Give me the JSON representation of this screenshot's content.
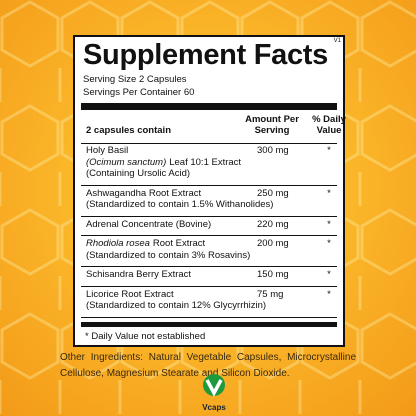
{
  "label": {
    "version": "V1",
    "title": "Supplement Facts",
    "serving_size": "Serving Size 2 Capsules",
    "servings_per_container": "Servings Per Container 60",
    "header": {
      "ingredient": "2 capsules contain",
      "amount": "Amount Per Serving",
      "daily_value": "% Daily Value"
    },
    "rows": [
      {
        "lines": [
          [
            {
              "text": "Holy Basil"
            }
          ],
          [
            {
              "text": "(Ocimum sanctum)",
              "italic": true
            },
            {
              "text": "Leaf 10:1 Extract"
            }
          ],
          [
            {
              "text": "(Containing Ursolic Acid)"
            }
          ]
        ],
        "amount": "300 mg",
        "daily_value": "*"
      },
      {
        "lines": [
          [
            {
              "text": "Ashwagandha Root Extract"
            }
          ],
          [
            {
              "text": "(Standardized to contain 1.5% Withanolides)"
            }
          ]
        ],
        "amount": "250 mg",
        "daily_value": "*"
      },
      {
        "lines": [
          [
            {
              "text": "Adrenal Concentrate (Bovine)"
            }
          ]
        ],
        "amount": "220 mg",
        "daily_value": "*"
      },
      {
        "lines": [
          [
            {
              "text": "Rhodiola rosea",
              "italic": true
            },
            {
              "text": "Root Extract"
            }
          ],
          [
            {
              "text": "(Standardized to contain 3% Rosavins)"
            }
          ]
        ],
        "amount": "200 mg",
        "daily_value": "*"
      },
      {
        "lines": [
          [
            {
              "text": "Schisandra Berry Extract"
            }
          ]
        ],
        "amount": "150 mg",
        "daily_value": "*"
      },
      {
        "lines": [
          [
            {
              "text": "Licorice Root Extract"
            }
          ],
          [
            {
              "text": "(Standardized to contain 12% Glycyrrhizin)"
            }
          ]
        ],
        "amount": "75 mg",
        "daily_value": "*"
      }
    ],
    "footnote": "* Daily Value not established",
    "other_ingredients": "Other Ingredients: Natural Vegetable Capsules, Microcrystalline Cellulose, Magnesium Stearate and Silicon Dioxide.",
    "logo": "Vcaps"
  }
}
